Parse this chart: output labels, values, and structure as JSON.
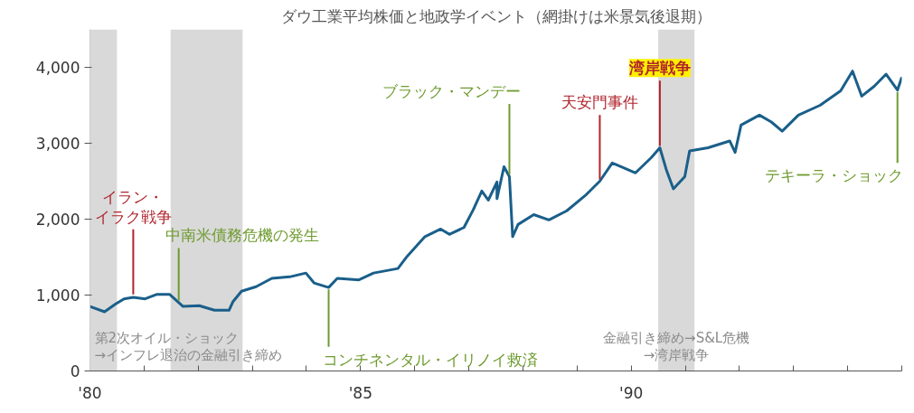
{
  "chart_data": {
    "type": "line",
    "title": "ダウ工業平均株価と地政学イベント（網掛けは米景気後退期）",
    "x": [
      1980.0,
      1980.27,
      1980.47,
      1980.63,
      1980.8,
      1981.02,
      1981.24,
      1981.47,
      1981.72,
      1982.02,
      1982.3,
      1982.57,
      1982.64,
      1982.8,
      1983.07,
      1983.36,
      1983.69,
      1983.99,
      1984.14,
      1984.41,
      1984.57,
      1984.97,
      1985.24,
      1985.69,
      1985.86,
      1986.19,
      1986.48,
      1986.64,
      1986.91,
      1987.08,
      1987.24,
      1987.36,
      1987.52,
      1987.52,
      1987.65,
      1987.75,
      1987.81,
      1987.91,
      1988.2,
      1988.48,
      1988.81,
      1989.15,
      1989.42,
      1989.65,
      1989.82,
      1990.08,
      1990.37,
      1990.53,
      1990.65,
      1990.78,
      1990.99,
      1991.08,
      1991.42,
      1991.82,
      1991.92,
      1992.03,
      1992.37,
      1992.59,
      1992.79,
      1993.09,
      1993.49,
      1993.87,
      1994.09,
      1994.26,
      1994.49,
      1994.71,
      1994.92,
      1995.0
    ],
    "series": [
      {
        "color": "#1a5f8a",
        "values": [
          850,
          780,
          880,
          950,
          970,
          950,
          1010,
          1010,
          850,
          860,
          800,
          800,
          910,
          1050,
          1110,
          1220,
          1240,
          1290,
          1160,
          1100,
          1220,
          1200,
          1290,
          1350,
          1510,
          1770,
          1870,
          1800,
          1890,
          2120,
          2370,
          2250,
          2490,
          2270,
          2690,
          2560,
          1770,
          1930,
          2060,
          1990,
          2110,
          2310,
          2500,
          2740,
          2690,
          2610,
          2810,
          2940,
          2650,
          2400,
          2560,
          2900,
          2940,
          3030,
          2880,
          3240,
          3370,
          3280,
          3160,
          3370,
          3500,
          3690,
          3950,
          3620,
          3750,
          3910,
          3700,
          3870
        ]
      }
    ],
    "xlim": [
      1980,
      1995
    ],
    "xticks": [
      {
        "value": 1980,
        "label": "'80"
      },
      {
        "value": 1981,
        "label": null
      },
      {
        "value": 1982,
        "label": null
      },
      {
        "value": 1983,
        "label": null
      },
      {
        "value": 1984,
        "label": null
      },
      {
        "value": 1985,
        "label": "'85"
      },
      {
        "value": 1986,
        "label": null
      },
      {
        "value": 1987,
        "label": null
      },
      {
        "value": 1988,
        "label": null
      },
      {
        "value": 1989,
        "label": null
      },
      {
        "value": 1990,
        "label": "'90"
      },
      {
        "value": 1991,
        "label": null
      },
      {
        "value": 1992,
        "label": null
      },
      {
        "value": 1993,
        "label": null
      },
      {
        "value": 1994,
        "label": null
      },
      {
        "value": 1995,
        "label": null
      }
    ],
    "ylim": [
      0,
      4500
    ],
    "yticks": [
      0,
      {
        "value": 1000,
        "label": "1,000"
      },
      {
        "value": 2000,
        "label": "2,000"
      },
      {
        "value": 3000,
        "label": "3,000"
      },
      {
        "value": 4000,
        "label": "4,000"
      }
    ],
    "grid": false,
    "bands": [
      {
        "axis": "x",
        "from": 1980.0,
        "to": 1980.5,
        "label": "第2次オイル・ショック\n→インフレ退治の金融引き締め",
        "color": "#d9d9d9"
      },
      {
        "axis": "x",
        "from": 1981.49,
        "to": 1982.82,
        "color": "#d9d9d9"
      },
      {
        "axis": "x",
        "from": 1990.5,
        "to": 1991.17,
        "label": "金融引き締め→S&L危機\n→湾岸戦争",
        "color": "#d9d9d9"
      }
    ],
    "annotations": [
      {
        "text": "イラン・イラク戦争",
        "x": 1980.8,
        "y": 970
      },
      {
        "text": "中南米債務危機の発生",
        "x": 1981.64,
        "y": 900
      },
      {
        "text": "コンチネンタル・イリノイ救済",
        "x": 1984.41,
        "y": 1100
      },
      {
        "text": "ブラック・マンデー",
        "x": 1987.75,
        "y": 2560
      },
      {
        "text": "天安門事件",
        "x": 1989.42,
        "y": 2500
      },
      {
        "text": "湾岸戦争",
        "x": 1990.53,
        "y": 2940
      },
      {
        "text": "テキーラ・ショック",
        "x": 1994.92,
        "y": 3700
      }
    ]
  }
}
